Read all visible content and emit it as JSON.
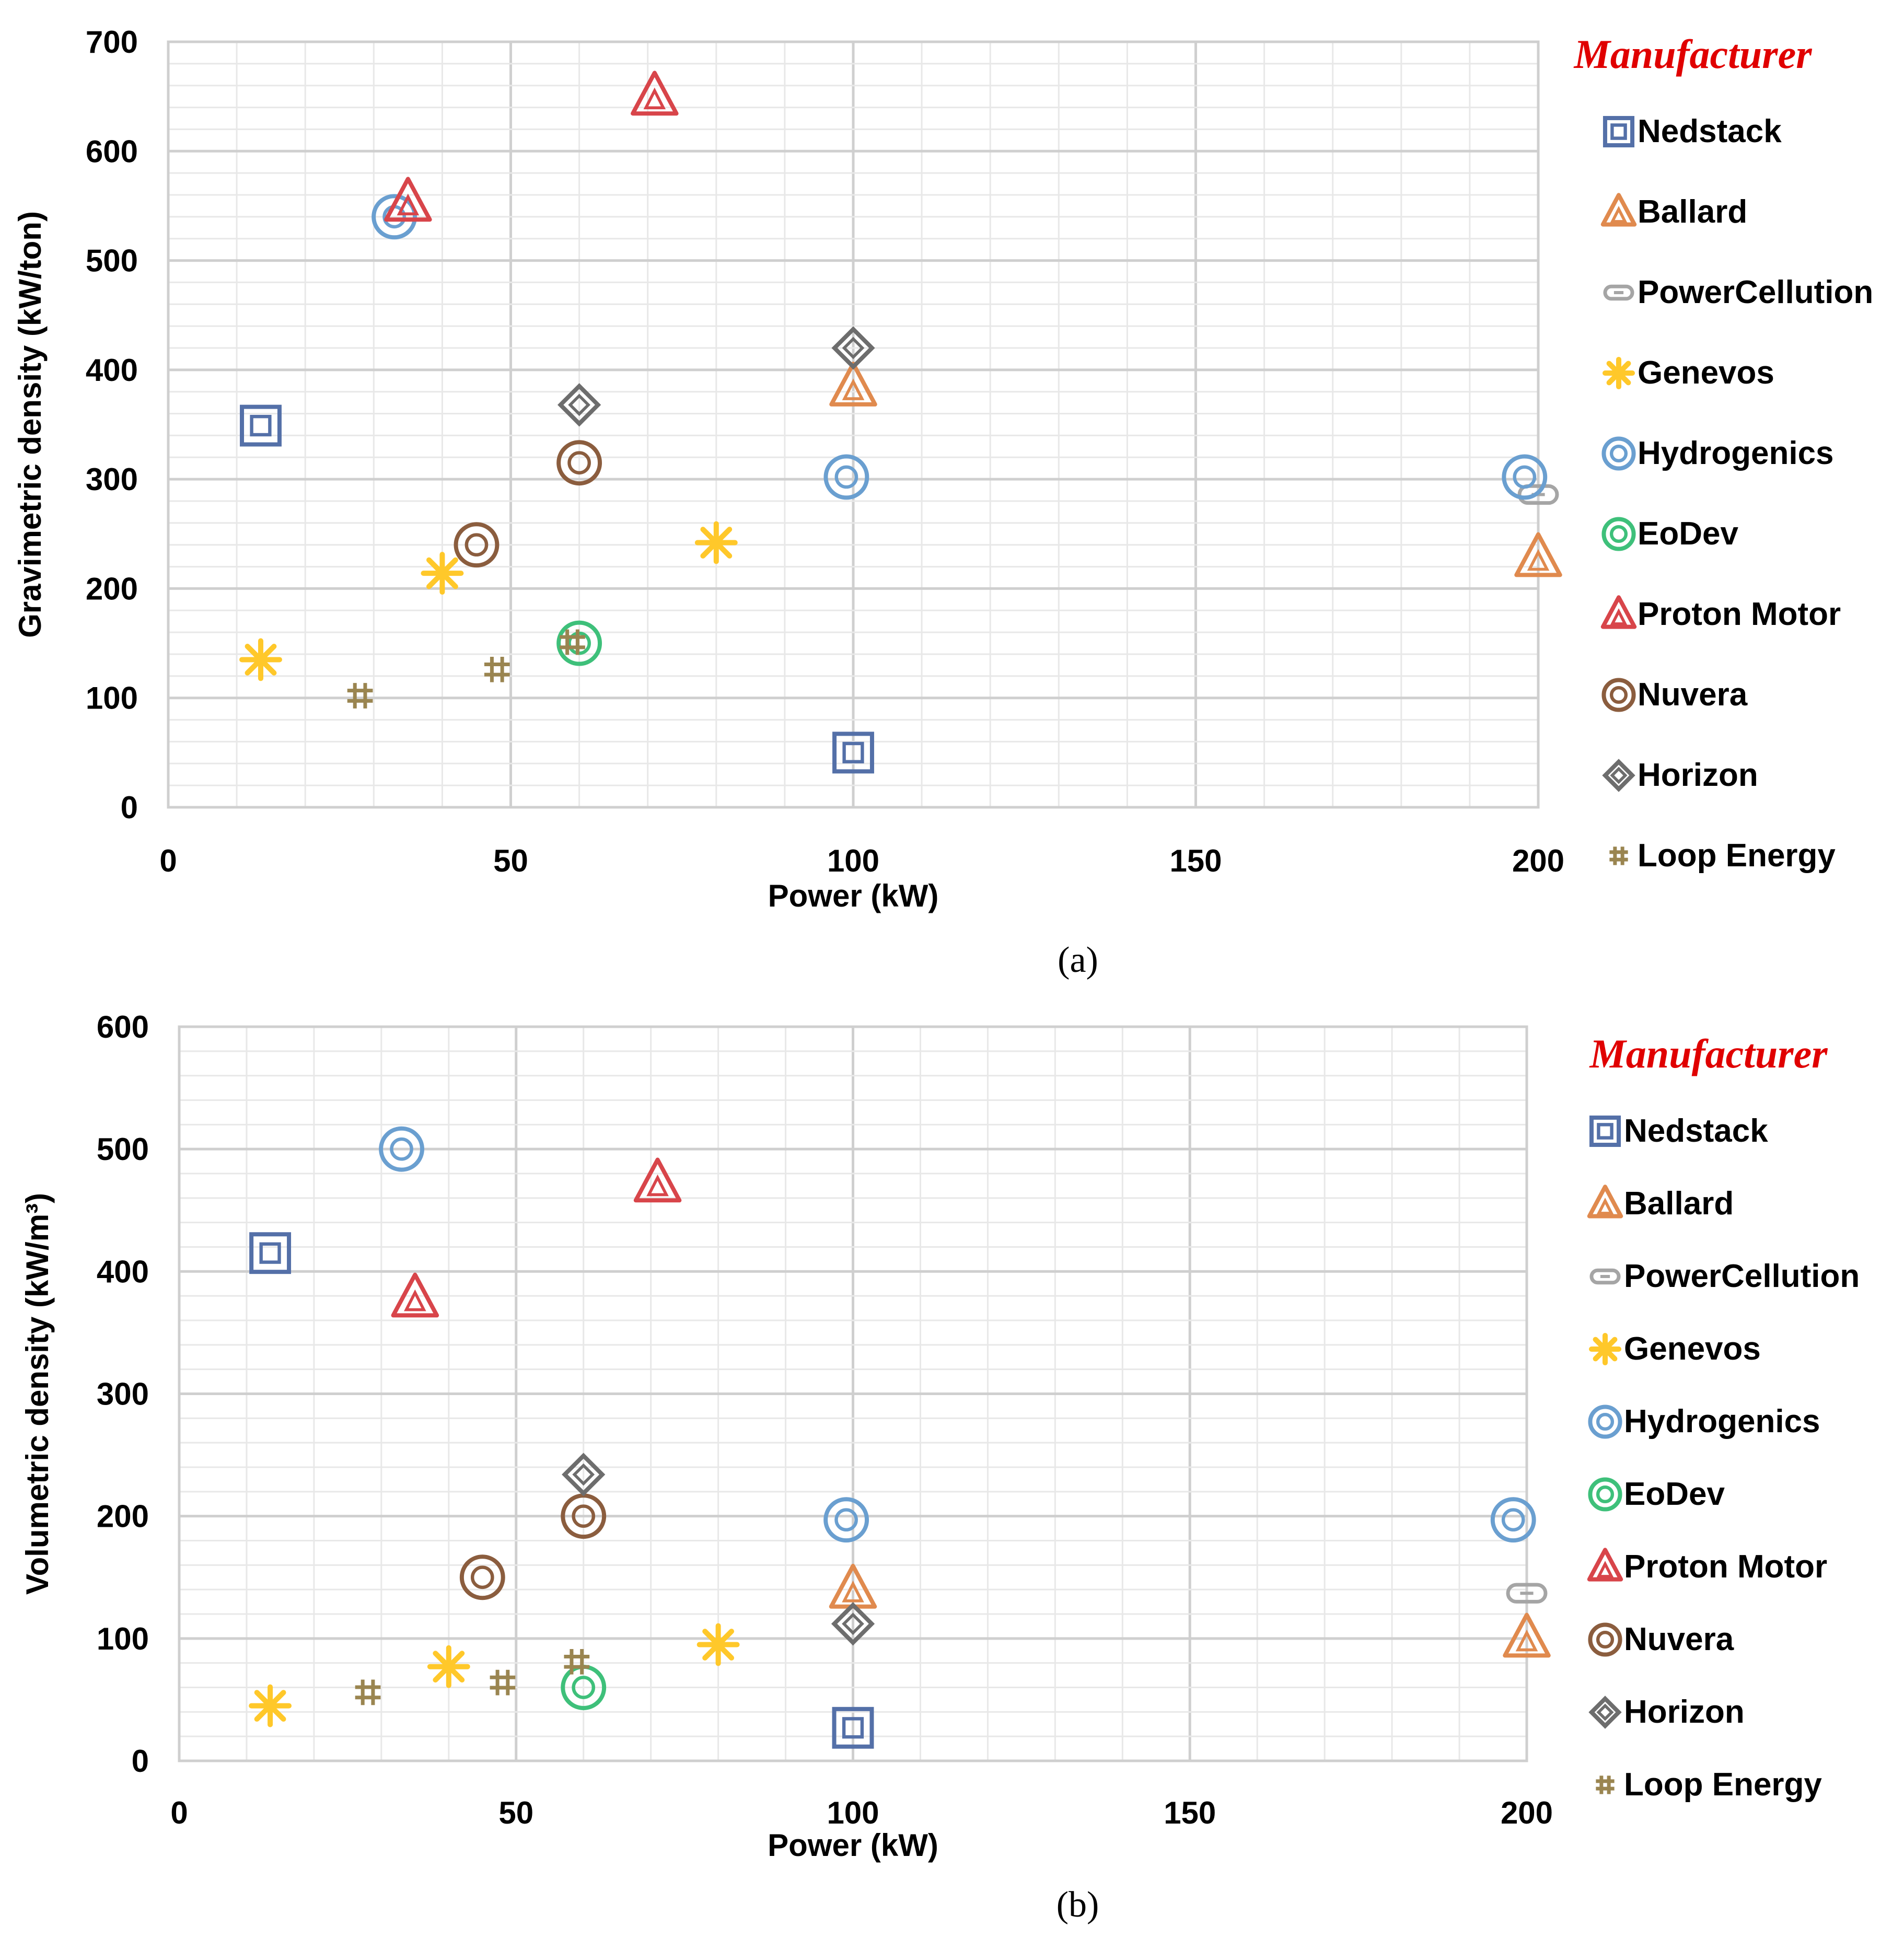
{
  "colors": {
    "Nedstack": "#5470a8",
    "Ballard": "#e08a4e",
    "PowerCellution": "#a5a5a5",
    "Genevos": "#ffc82a",
    "Hydrogenics": "#6a9fd0",
    "EoDev": "#3ec07a",
    "Proton Motor": "#d8454a",
    "Nuvera": "#8b5d3e",
    "Horizon": "#6d6d6d",
    "Loop Energy": "#9a8550",
    "legend_title": "#e00000",
    "grid_major": "#cfcfcf",
    "grid_minor": "#e8e8e8"
  },
  "chart_data": [
    {
      "type": "scatter",
      "panel_label": "(a)",
      "xlabel": "Power (kW)",
      "ylabel": "Gravimetric density (kW/ton)",
      "xlim": [
        0,
        200
      ],
      "ylim": [
        0,
        700
      ],
      "xticks": [
        0,
        50,
        100,
        150,
        200
      ],
      "yticks": [
        0,
        100,
        200,
        300,
        400,
        500,
        600,
        700
      ],
      "grid": true,
      "legend_title": "Manufacturer",
      "legend_position": "right",
      "series": [
        {
          "name": "Nedstack",
          "marker": "square",
          "points": [
            [
              13.5,
              349
            ],
            [
              100,
              50
            ]
          ]
        },
        {
          "name": "Ballard",
          "marker": "triangle",
          "points": [
            [
              100,
              384
            ],
            [
              200,
              228
            ]
          ]
        },
        {
          "name": "PowerCellution",
          "marker": "pill",
          "points": [
            [
              200,
              286
            ]
          ]
        },
        {
          "name": "Genevos",
          "marker": "asterisk",
          "points": [
            [
              13.5,
              135
            ],
            [
              40,
              214
            ],
            [
              80,
              242
            ]
          ]
        },
        {
          "name": "Hydrogenics",
          "marker": "ring",
          "points": [
            [
              33,
              540
            ],
            [
              99,
              302
            ],
            [
              198,
              302
            ]
          ]
        },
        {
          "name": "EoDev",
          "marker": "ring",
          "points": [
            [
              60,
              150
            ]
          ]
        },
        {
          "name": "Proton Motor",
          "marker": "triangle",
          "points": [
            [
              71,
              650
            ],
            [
              35,
              553
            ]
          ]
        },
        {
          "name": "Nuvera",
          "marker": "ring",
          "points": [
            [
              45,
              240
            ],
            [
              60,
              315
            ]
          ]
        },
        {
          "name": "Horizon",
          "marker": "diamond",
          "points": [
            [
              60,
              368
            ],
            [
              100,
              420
            ]
          ]
        },
        {
          "name": "Loop Energy",
          "marker": "hash",
          "points": [
            [
              28,
              102
            ],
            [
              48,
              126
            ],
            [
              59,
              151
            ]
          ]
        }
      ]
    },
    {
      "type": "scatter",
      "panel_label": "(b)",
      "xlabel": "Power (kW)",
      "ylabel": "Volumetric density (kW/m³)",
      "xlim": [
        0,
        200
      ],
      "ylim": [
        0,
        600
      ],
      "xticks": [
        0,
        50,
        100,
        150,
        200
      ],
      "yticks": [
        0,
        100,
        200,
        300,
        400,
        500,
        600
      ],
      "grid": true,
      "legend_title": "Manufacturer",
      "legend_position": "right",
      "series": [
        {
          "name": "Nedstack",
          "marker": "square",
          "points": [
            [
              13.5,
              415
            ],
            [
              100,
              27
            ]
          ]
        },
        {
          "name": "Ballard",
          "marker": "triangle",
          "points": [
            [
              100,
              140
            ],
            [
              200,
              100
            ]
          ]
        },
        {
          "name": "PowerCellution",
          "marker": "pill",
          "points": [
            [
              200,
              137
            ]
          ]
        },
        {
          "name": "Genevos",
          "marker": "asterisk",
          "points": [
            [
              13.5,
              45
            ],
            [
              40,
              77
            ],
            [
              80,
              95
            ]
          ]
        },
        {
          "name": "Hydrogenics",
          "marker": "ring",
          "points": [
            [
              33,
              500
            ],
            [
              99,
              197
            ],
            [
              198,
              197
            ]
          ]
        },
        {
          "name": "EoDev",
          "marker": "ring",
          "points": [
            [
              60,
              60
            ]
          ]
        },
        {
          "name": "Proton Motor",
          "marker": "triangle",
          "points": [
            [
              71,
              472
            ],
            [
              35,
              378
            ]
          ]
        },
        {
          "name": "Nuvera",
          "marker": "ring",
          "points": [
            [
              45,
              150
            ],
            [
              60,
              200
            ]
          ]
        },
        {
          "name": "Horizon",
          "marker": "diamond",
          "points": [
            [
              60,
              234
            ],
            [
              100,
              112
            ]
          ]
        },
        {
          "name": "Loop Energy",
          "marker": "hash",
          "points": [
            [
              28,
              56
            ],
            [
              48,
              64
            ],
            [
              59,
              81
            ]
          ]
        }
      ]
    }
  ]
}
